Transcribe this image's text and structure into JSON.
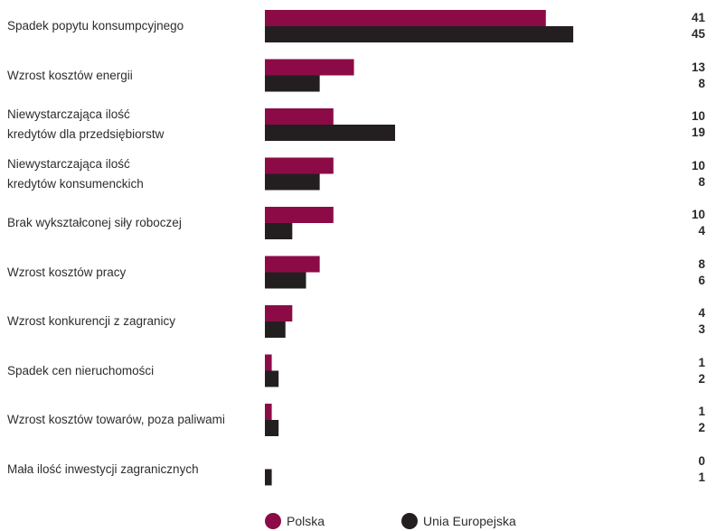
{
  "colors": {
    "polska": "#8c0b46",
    "ue": "#231f20"
  },
  "legend": {
    "series1": "Polska",
    "series2": "Unia Europejska"
  },
  "chart_data": {
    "type": "bar",
    "orientation": "horizontal",
    "categories": [
      "Spadek popytu konsumpcyjnego",
      "Wzrost kosztów energii",
      "Niewystarczająca ilość kredytów dla przedsiębiorstw",
      "Niewystarczająca ilość kredytów konsumenckich",
      "Brak wykształconej siły roboczej",
      "Wzrost kosztów pracy",
      "Wzrost konkurencji z zagranicy",
      "Spadek cen nieruchomości",
      "Wzrost kosztów towarów, poza paliwami",
      "Mała ilość inwestycji zagranicznych"
    ],
    "category_lines": [
      [
        "Spadek popytu konsumpcyjnego"
      ],
      [
        "Wzrost kosztów energii"
      ],
      [
        "Niewystarczająca ilość",
        "kredytów dla przedsiębiorstw"
      ],
      [
        "Niewystarczająca ilość",
        "kredytów konsumenckich"
      ],
      [
        "Brak wykształconej siły roboczej"
      ],
      [
        "Wzrost kosztów pracy"
      ],
      [
        "Wzrost konkurencji z zagranicy"
      ],
      [
        "Spadek cen nieruchomości"
      ],
      [
        "Wzrost kosztów towarów, poza paliwami"
      ],
      [
        "Mała ilość inwestycji zagranicznych"
      ]
    ],
    "series": [
      {
        "name": "Polska",
        "values": [
          41,
          13,
          10,
          10,
          10,
          8,
          4,
          1,
          1,
          0
        ]
      },
      {
        "name": "Unia Europejska",
        "values": [
          45,
          8,
          19,
          8,
          4,
          6,
          3,
          2,
          2,
          1
        ]
      }
    ],
    "xlim": [
      0,
      45
    ],
    "legend_position": "bottom"
  }
}
